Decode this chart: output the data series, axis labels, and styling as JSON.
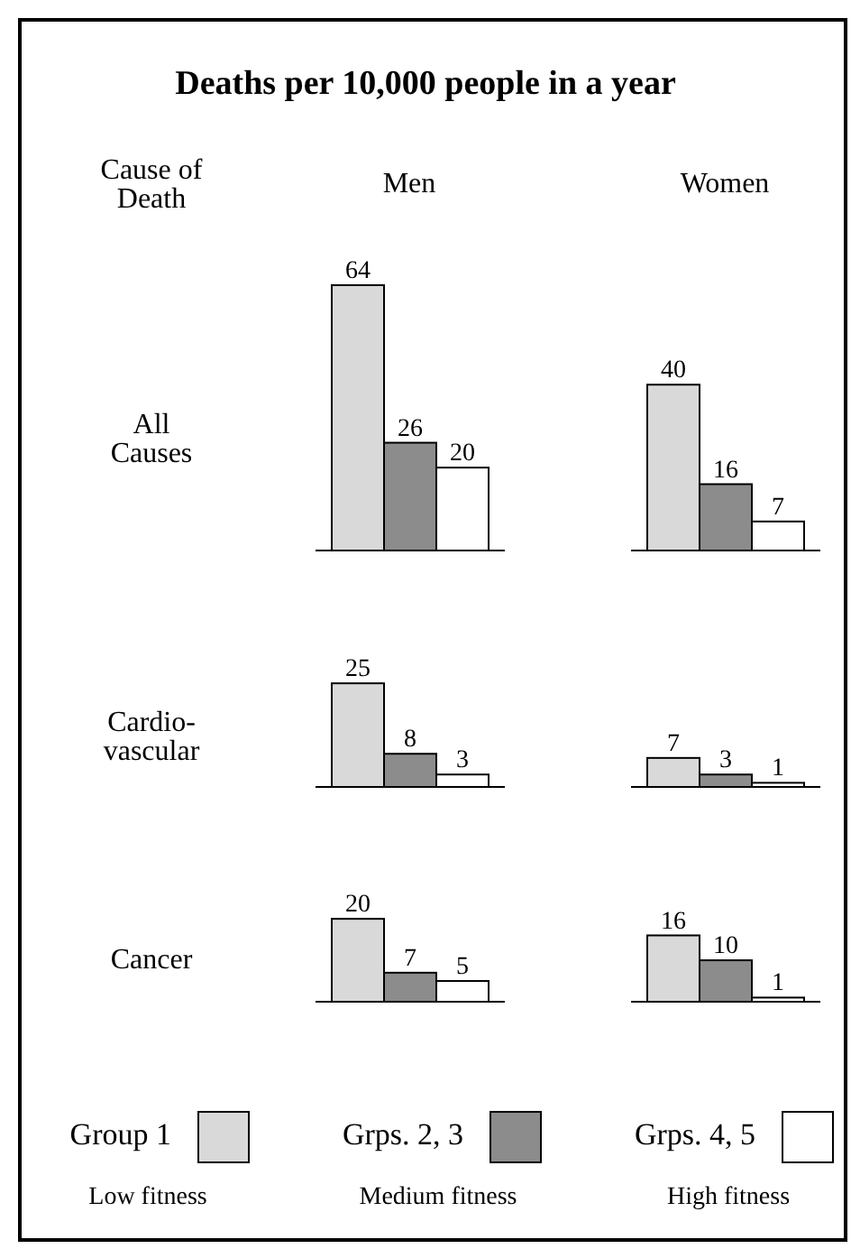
{
  "chart_data": [
    {
      "type": "other",
      "title": "Deaths per 10,000 people in a year",
      "annotations": [
        "Cause of Death"
      ]
    },
    {
      "type": "bar",
      "title": "Men",
      "ylabel": "All Causes",
      "categories": [
        null
      ],
      "data_labels": true,
      "series": [
        {
          "color": "#d9d9d9",
          "values": [
            64
          ]
        },
        {
          "color": "#8c8c8c",
          "values": [
            26
          ]
        },
        {
          "color": "#ffffff",
          "values": [
            20
          ]
        }
      ]
    },
    {
      "type": "bar",
      "title": "Women",
      "categories": [
        null
      ],
      "data_labels": true,
      "series": [
        {
          "color": "#d9d9d9",
          "values": [
            40
          ]
        },
        {
          "color": "#8c8c8c",
          "values": [
            16
          ]
        },
        {
          "color": "#ffffff",
          "values": [
            7
          ]
        }
      ]
    },
    {
      "type": "bar",
      "ylabel": "Cardio-vascular",
      "categories": [
        null
      ],
      "data_labels": true,
      "series": [
        {
          "color": "#d9d9d9",
          "values": [
            25
          ]
        },
        {
          "color": "#8c8c8c",
          "values": [
            8
          ]
        },
        {
          "color": "#ffffff",
          "values": [
            3
          ]
        }
      ]
    },
    {
      "type": "bar",
      "categories": [
        null
      ],
      "data_labels": true,
      "series": [
        {
          "color": "#d9d9d9",
          "values": [
            7
          ]
        },
        {
          "color": "#8c8c8c",
          "values": [
            3
          ]
        },
        {
          "color": "#ffffff",
          "values": [
            1
          ]
        }
      ]
    },
    {
      "type": "bar",
      "ylabel": "Cancer",
      "categories": [
        null
      ],
      "data_labels": true,
      "series": [
        {
          "color": "#d9d9d9",
          "values": [
            20
          ]
        },
        {
          "color": "#8c8c8c",
          "values": [
            7
          ]
        },
        {
          "color": "#ffffff",
          "values": [
            5
          ]
        }
      ]
    },
    {
      "type": "bar",
      "categories": [
        null
      ],
      "data_labels": true,
      "legend": "bottom",
      "annotations": [
        "Low fitness",
        "Medium fitness",
        "High fitness"
      ],
      "series": [
        {
          "name": "Group 1",
          "color": "#d9d9d9",
          "values": [
            16
          ]
        },
        {
          "name": "Grps. 2, 3",
          "color": "#8c8c8c",
          "values": [
            10
          ]
        },
        {
          "name": "Grps. 4, 5",
          "color": "#ffffff",
          "values": [
            1
          ]
        }
      ]
    }
  ]
}
